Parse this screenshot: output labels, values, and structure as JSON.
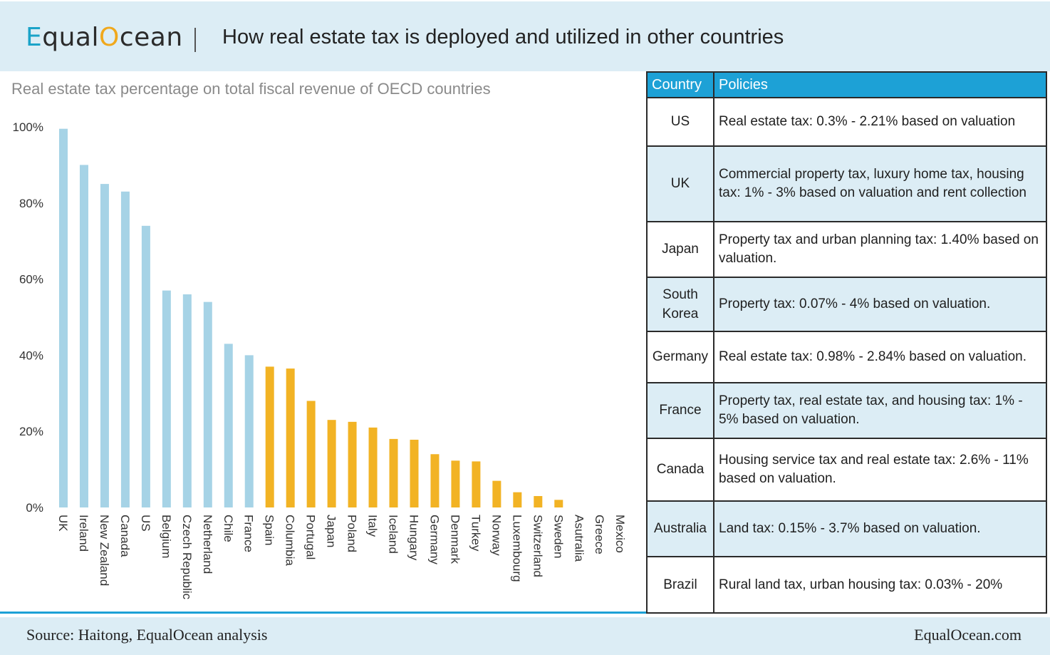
{
  "header": {
    "logo_parts": [
      "E",
      "qual",
      "O",
      "cean"
    ],
    "title": "How real estate tax is deployed and utilized in other countries"
  },
  "colors": {
    "blue_bar": "#a6d3e6",
    "orange_bar": "#f2b324",
    "table_header": "#1da1d6",
    "header_bg": "#dcedf5"
  },
  "chart_data": {
    "type": "bar",
    "title": "Real estate tax percentage on total fiscal revenue of OECD countries",
    "xlabel": "",
    "ylabel": "",
    "ylim": [
      0,
      100
    ],
    "yticks": [
      "0%",
      "20%",
      "40%",
      "60%",
      "80%",
      "100%"
    ],
    "categories": [
      "UK",
      "Ireland",
      "New Zealand",
      "Canada",
      "US",
      "Belgium",
      "Czech Republic",
      "Netherland",
      "Chile",
      "France",
      "Spain",
      "Columbia",
      "Portugal",
      "Japan",
      "Poland",
      "Italy",
      "Iceland",
      "Hungary",
      "Germany",
      "Denmark",
      "Turkey",
      "Norway",
      "Luxembourg",
      "Switzerland",
      "Sweden",
      "Asutralia",
      "Greece",
      "Mexico"
    ],
    "values": [
      99.5,
      90,
      85,
      83,
      74,
      57,
      56,
      54,
      43,
      40,
      37,
      36.5,
      28,
      23,
      22.5,
      21,
      18,
      17.8,
      14,
      12.3,
      12.1,
      7,
      4,
      3,
      2,
      0,
      0,
      0
    ],
    "series_colors": [
      "blue",
      "blue",
      "blue",
      "blue",
      "blue",
      "blue",
      "blue",
      "blue",
      "blue",
      "blue",
      "orange",
      "orange",
      "orange",
      "orange",
      "orange",
      "orange",
      "orange",
      "orange",
      "orange",
      "orange",
      "orange",
      "orange",
      "orange",
      "orange",
      "orange",
      "orange",
      "orange",
      "orange"
    ]
  },
  "table": {
    "headers": [
      "Country",
      "Policies"
    ],
    "rows": [
      {
        "country": "US",
        "policy": "Real estate tax: 0.3% - 2.21% based on valuation"
      },
      {
        "country": "UK",
        "policy": "Commercial property tax, luxury home tax, housing tax: 1% - 3% based on valuation and rent collection"
      },
      {
        "country": "Japan",
        "policy": "Property tax and urban planning tax: 1.40% based on valuation."
      },
      {
        "country": "South Korea",
        "policy": "Property tax: 0.07% - 4% based on valuation."
      },
      {
        "country": "Germany",
        "policy": "Real estate tax: 0.98% - 2.84% based on valuation."
      },
      {
        "country": "France",
        "policy": "Property tax, real estate tax, and housing tax: 1% - 5% based on valuation."
      },
      {
        "country": "Canada",
        "policy": "Housing service tax and real estate tax: 2.6% - 11% based on valuation."
      },
      {
        "country": "Australia",
        "policy": "Land tax: 0.15% - 3.7% based on valuation."
      },
      {
        "country": "Brazil",
        "policy": "Rural land tax, urban housing tax: 0.03% - 20%"
      }
    ]
  },
  "footer": {
    "source": "Source: Haitong, EqualOcean analysis",
    "site": "EqualOcean.com"
  }
}
